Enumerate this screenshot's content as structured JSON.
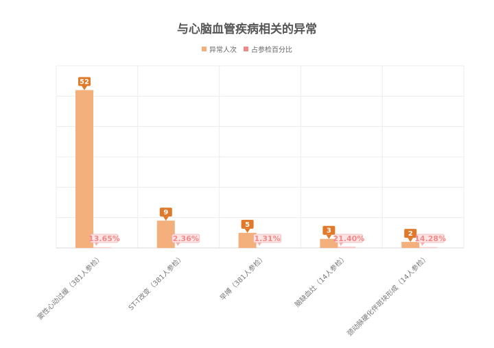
{
  "chart_data": {
    "type": "bar",
    "title": "与心脑血管疾病相关的异常",
    "categories": [
      "窦性心动过缓（381人参检）",
      "ST-T改变（381人参检）",
      "早搏（381人参检）",
      "脑缺血灶（14人参检）",
      "颈动脉硬化伴斑块形成（14人参检）"
    ],
    "series": [
      {
        "name": "异常人次",
        "values": [
          52,
          9,
          5,
          3,
          2
        ],
        "color": "#f3b07c",
        "label_color": "#e07a2a"
      },
      {
        "name": "占参检百分比",
        "values": [
          13.65,
          2.36,
          1.31,
          21.4,
          14.28
        ],
        "labels": [
          "13.65%",
          "2.36%",
          "1.31%",
          "21.40%",
          "14.28%"
        ],
        "color": "#f08a8a"
      }
    ],
    "ylim": [
      0,
      60
    ],
    "grid": true,
    "legend_position": "top-center"
  }
}
